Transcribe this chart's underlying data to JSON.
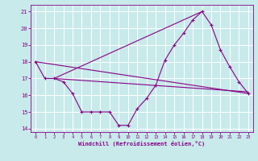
{
  "title": "",
  "xlabel": "Windchill (Refroidissement éolien,°C)",
  "ylabel": "",
  "background_color": "#c8eaea",
  "grid_color": "#ffffff",
  "line_color": "#880088",
  "xlim": [
    -0.5,
    23.5
  ],
  "ylim": [
    13.8,
    21.4
  ],
  "yticks": [
    14,
    15,
    16,
    17,
    18,
    19,
    20,
    21
  ],
  "xticks": [
    0,
    1,
    2,
    3,
    4,
    5,
    6,
    7,
    8,
    9,
    10,
    11,
    12,
    13,
    14,
    15,
    16,
    17,
    18,
    19,
    20,
    21,
    22,
    23
  ],
  "line1_x": [
    0,
    1,
    2,
    3,
    4,
    5,
    6,
    7,
    8,
    9,
    10,
    11,
    12,
    13,
    14,
    15,
    16,
    17,
    18,
    19,
    20,
    21,
    22,
    23
  ],
  "line1_y": [
    18,
    17,
    17,
    16.8,
    16.1,
    15,
    15,
    15,
    15,
    14.2,
    14.2,
    15.2,
    15.8,
    16.6,
    18.1,
    19,
    19.7,
    20.5,
    21,
    20.2,
    18.7,
    17.7,
    16.8,
    16.1
  ],
  "line2_x": [
    0,
    23
  ],
  "line2_y": [
    18,
    16.1
  ],
  "line3_x": [
    2,
    23
  ],
  "line3_y": [
    17,
    16.2
  ],
  "line4_x": [
    2,
    18
  ],
  "line4_y": [
    17,
    21.0
  ]
}
